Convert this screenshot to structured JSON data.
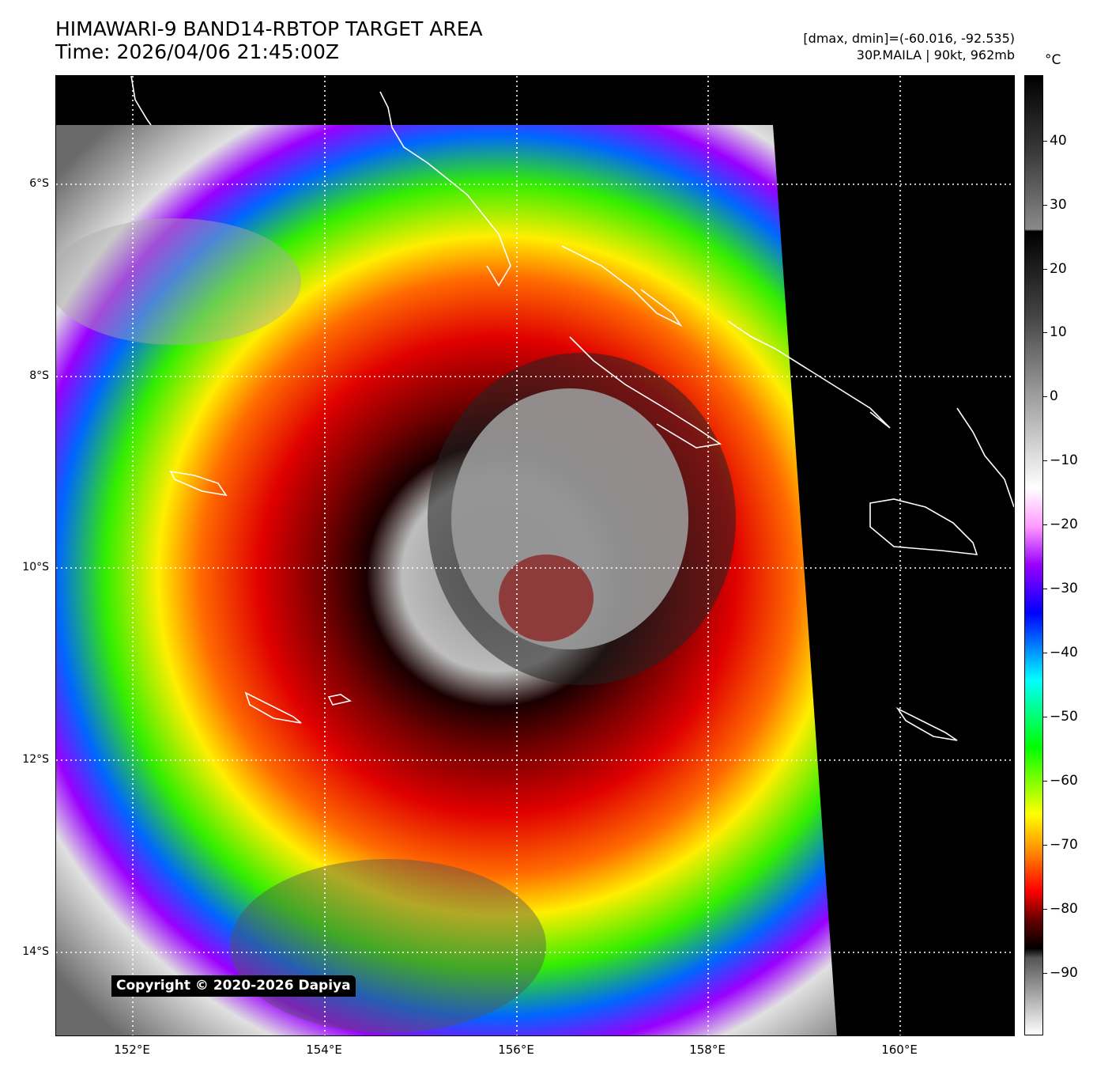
{
  "header": {
    "title_line1": "HIMAWARI-9 BAND14-RBTOP TARGET AREA",
    "title_line2": "Time: 2026/04/06 21:45:00Z",
    "info_line1": "[dmax, dmin]=(-60.016, -92.535)",
    "info_line2": "30P.MAILA | 90kt, 962mb"
  },
  "map": {
    "lat_labels": [
      "6°S",
      "8°S",
      "10°S",
      "12°S",
      "14°S"
    ],
    "lon_labels": [
      "152°E",
      "154°E",
      "156°E",
      "158°E",
      "160°E"
    ],
    "copyright": "Copyright © 2020-2026 Dapiya"
  },
  "colorbar": {
    "unit": "°C",
    "ticks": [
      "40",
      "30",
      "20",
      "10",
      "0",
      "−10",
      "−20",
      "−30",
      "−40",
      "−50",
      "−60",
      "−70",
      "−80",
      "−90"
    ],
    "stops": [
      "#000000",
      "#3a3a3a",
      "#8a8a8a",
      "#000000",
      "#444444",
      "#9a9a9a",
      "#e6e6e6",
      "#ffffff",
      "#ff99ff",
      "#9900ff",
      "#0000ff",
      "#00ffff",
      "#00ff00",
      "#ffff00",
      "#ff8800",
      "#ff0000",
      "#660000",
      "#000000",
      "#555555",
      "#aaaaaa",
      "#ffffff"
    ]
  },
  "colors": {
    "background": "#000000",
    "coast": "#ffffff",
    "grid": "#ffffff"
  }
}
